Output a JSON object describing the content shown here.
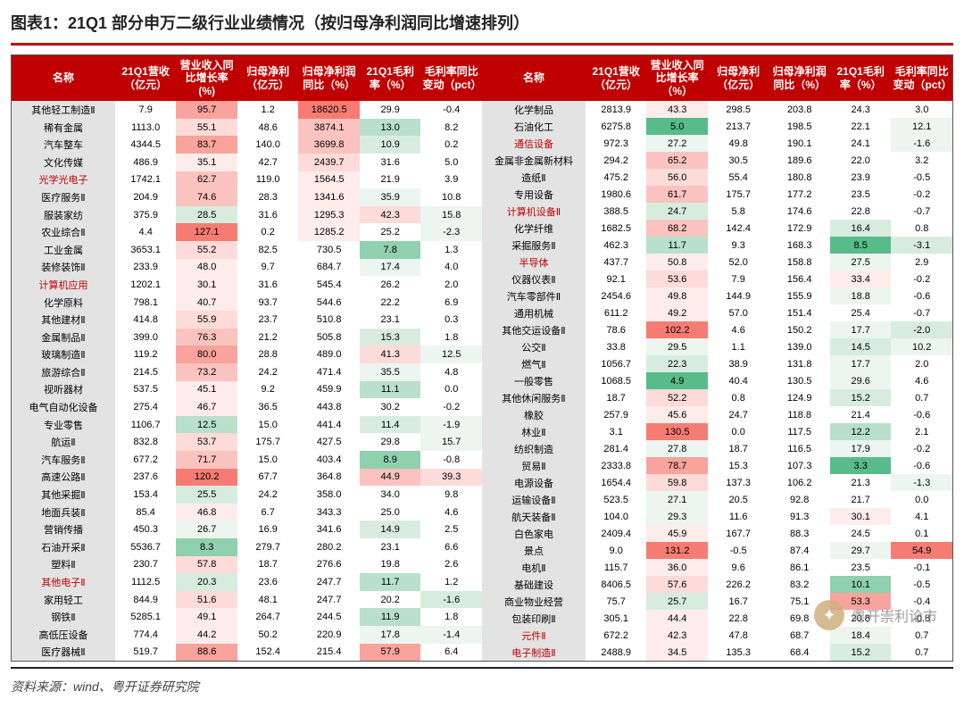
{
  "title": "图表1：21Q1 部分申万二级行业业绩情况（按归母净利润同比增速排列）",
  "footer": "资料来源：wind、粤开证券研究院",
  "watermark": "粤开崇利论市",
  "columns": [
    "名称",
    "21Q1营收（亿元）",
    "营业收入同比增长率(%)",
    "归母净利（亿元）",
    "归母净利润同比（%）",
    "21Q1毛利率（%）",
    "毛利率同比变动（pct）"
  ],
  "columns2": [
    "名称",
    "21Q1营收（亿元）",
    "营业收入同比增长率（%）",
    "归母净利（亿元）",
    "归母净利润同比（%）",
    "21Q1毛利率（%）",
    "毛利率同比变动（pct）"
  ],
  "heat_colors": {
    "r5": "#f57c73",
    "r4": "#f8a39c",
    "r3": "#fbc3bf",
    "r2": "#fddbd9",
    "r1": "#feeceb",
    "g5": "#57bb8a",
    "g4": "#8fd0ae",
    "g3": "#b8e0cb",
    "g2": "#d7ecdf",
    "g1": "#ecf5ef",
    "n": "#ffffff"
  },
  "left": [
    {
      "name": "其他轻工制造Ⅱ",
      "red": 0,
      "v": [
        "7.9",
        "95.7",
        "1.2",
        "18620.5",
        "29.9",
        "-0.4"
      ],
      "h": [
        "n",
        "r4",
        "n",
        "r5",
        "n",
        "n"
      ]
    },
    {
      "name": "稀有金属",
      "red": 0,
      "v": [
        "1113.0",
        "55.1",
        "48.6",
        "3874.1",
        "13.0",
        "8.2"
      ],
      "h": [
        "n",
        "r2",
        "n",
        "r3",
        "g3",
        "n"
      ]
    },
    {
      "name": "汽车整车",
      "red": 0,
      "v": [
        "4344.5",
        "83.7",
        "140.0",
        "3699.8",
        "10.9",
        "0.2"
      ],
      "h": [
        "n",
        "r4",
        "n",
        "r3",
        "g2",
        "n"
      ]
    },
    {
      "name": "文化传媒",
      "red": 0,
      "v": [
        "486.9",
        "35.1",
        "42.7",
        "2439.7",
        "31.6",
        "5.0"
      ],
      "h": [
        "n",
        "r1",
        "n",
        "r2",
        "n",
        "n"
      ]
    },
    {
      "name": "光学光电子",
      "red": 1,
      "v": [
        "1742.1",
        "62.7",
        "119.0",
        "1564.5",
        "21.9",
        "3.9"
      ],
      "h": [
        "n",
        "r3",
        "n",
        "r1",
        "n",
        "n"
      ]
    },
    {
      "name": "医疗服务Ⅱ",
      "red": 0,
      "v": [
        "204.9",
        "74.6",
        "28.3",
        "1341.6",
        "35.9",
        "10.8"
      ],
      "h": [
        "n",
        "r3",
        "n",
        "r1",
        "g1",
        "n"
      ]
    },
    {
      "name": "服装家纺",
      "red": 0,
      "v": [
        "375.9",
        "28.5",
        "31.6",
        "1295.3",
        "42.3",
        "15.8"
      ],
      "h": [
        "n",
        "g2",
        "n",
        "r1",
        "r2",
        "g1"
      ]
    },
    {
      "name": "农业综合Ⅱ",
      "red": 0,
      "v": [
        "4.4",
        "127.1",
        "0.2",
        "1285.2",
        "25.2",
        "-2.3"
      ],
      "h": [
        "n",
        "r5",
        "n",
        "r1",
        "n",
        "g1"
      ]
    },
    {
      "name": "工业金属",
      "red": 0,
      "v": [
        "3653.1",
        "55.2",
        "82.5",
        "730.5",
        "7.8",
        "1.3"
      ],
      "h": [
        "n",
        "r2",
        "n",
        "n",
        "g4",
        "n"
      ]
    },
    {
      "name": "装修装饰Ⅱ",
      "red": 0,
      "v": [
        "233.9",
        "48.0",
        "9.7",
        "684.7",
        "17.4",
        "4.0"
      ],
      "h": [
        "n",
        "r1",
        "n",
        "n",
        "g1",
        "n"
      ]
    },
    {
      "name": "计算机应用",
      "red": 1,
      "v": [
        "1202.1",
        "30.1",
        "31.6",
        "545.4",
        "26.2",
        "2.0"
      ],
      "h": [
        "n",
        "r1",
        "n",
        "n",
        "n",
        "n"
      ]
    },
    {
      "name": "化学原料",
      "red": 0,
      "v": [
        "798.1",
        "40.7",
        "93.7",
        "544.6",
        "22.2",
        "6.9"
      ],
      "h": [
        "n",
        "r1",
        "n",
        "n",
        "n",
        "n"
      ]
    },
    {
      "name": "其他建材Ⅱ",
      "red": 0,
      "v": [
        "414.8",
        "55.9",
        "23.7",
        "510.8",
        "23.1",
        "0.3"
      ],
      "h": [
        "n",
        "r2",
        "n",
        "n",
        "n",
        "n"
      ]
    },
    {
      "name": "金属制品Ⅱ",
      "red": 0,
      "v": [
        "399.0",
        "76.3",
        "21.2",
        "505.8",
        "15.3",
        "1.8"
      ],
      "h": [
        "n",
        "r3",
        "n",
        "n",
        "g2",
        "n"
      ]
    },
    {
      "name": "玻璃制造Ⅱ",
      "red": 0,
      "v": [
        "119.2",
        "80.0",
        "28.8",
        "489.0",
        "41.3",
        "12.5"
      ],
      "h": [
        "n",
        "r4",
        "n",
        "n",
        "r2",
        "g1"
      ]
    },
    {
      "name": "旅游综合Ⅱ",
      "red": 0,
      "v": [
        "214.5",
        "73.2",
        "24.2",
        "471.4",
        "35.5",
        "4.8"
      ],
      "h": [
        "n",
        "r3",
        "n",
        "n",
        "g1",
        "n"
      ]
    },
    {
      "name": "视听器材",
      "red": 0,
      "v": [
        "537.5",
        "45.1",
        "9.2",
        "459.9",
        "11.1",
        "0.0"
      ],
      "h": [
        "n",
        "r1",
        "n",
        "n",
        "g3",
        "n"
      ]
    },
    {
      "name": "电气自动化设备",
      "red": 0,
      "v": [
        "275.4",
        "46.7",
        "36.5",
        "443.8",
        "30.2",
        "-0.2"
      ],
      "h": [
        "n",
        "r1",
        "n",
        "n",
        "n",
        "n"
      ]
    },
    {
      "name": "专业零售",
      "red": 0,
      "v": [
        "1106.7",
        "12.5",
        "15.0",
        "441.4",
        "11.4",
        "-1.9"
      ],
      "h": [
        "n",
        "g3",
        "n",
        "n",
        "g2",
        "g1"
      ]
    },
    {
      "name": "航运Ⅱ",
      "red": 0,
      "v": [
        "832.8",
        "53.7",
        "175.7",
        "427.5",
        "29.8",
        "15.7"
      ],
      "h": [
        "n",
        "r2",
        "n",
        "n",
        "n",
        "g1"
      ]
    },
    {
      "name": "汽车服务Ⅱ",
      "red": 0,
      "v": [
        "677.2",
        "71.7",
        "15.0",
        "403.4",
        "8.9",
        "-0.8"
      ],
      "h": [
        "n",
        "r3",
        "n",
        "n",
        "g4",
        "n"
      ]
    },
    {
      "name": "高速公路Ⅱ",
      "red": 0,
      "v": [
        "237.6",
        "120.2",
        "67.7",
        "364.8",
        "44.9",
        "39.3"
      ],
      "h": [
        "n",
        "r5",
        "n",
        "n",
        "r3",
        "r2"
      ]
    },
    {
      "name": "其他采掘Ⅱ",
      "red": 0,
      "v": [
        "153.4",
        "25.5",
        "24.2",
        "358.0",
        "34.0",
        "9.8"
      ],
      "h": [
        "n",
        "g2",
        "n",
        "n",
        "n",
        "n"
      ]
    },
    {
      "name": "地面兵装Ⅱ",
      "red": 0,
      "v": [
        "85.4",
        "46.8",
        "6.7",
        "343.3",
        "25.0",
        "4.6"
      ],
      "h": [
        "n",
        "r1",
        "n",
        "n",
        "n",
        "n"
      ]
    },
    {
      "name": "营销传播",
      "red": 0,
      "v": [
        "450.3",
        "26.7",
        "16.9",
        "341.6",
        "14.9",
        "2.5"
      ],
      "h": [
        "n",
        "g1",
        "n",
        "n",
        "g2",
        "n"
      ]
    },
    {
      "name": "石油开采Ⅱ",
      "red": 0,
      "v": [
        "5536.7",
        "8.3",
        "279.7",
        "280.2",
        "23.1",
        "6.6"
      ],
      "h": [
        "n",
        "g4",
        "n",
        "n",
        "n",
        "n"
      ]
    },
    {
      "name": "塑料Ⅱ",
      "red": 0,
      "v": [
        "230.7",
        "57.8",
        "18.7",
        "276.6",
        "19.8",
        "2.6"
      ],
      "h": [
        "n",
        "r2",
        "n",
        "n",
        "n",
        "n"
      ]
    },
    {
      "name": "其他电子Ⅱ",
      "red": 1,
      "v": [
        "1112.5",
        "20.3",
        "23.6",
        "247.7",
        "11.7",
        "1.2"
      ],
      "h": [
        "n",
        "g2",
        "n",
        "n",
        "g3",
        "n"
      ]
    },
    {
      "name": "家用轻工",
      "red": 0,
      "v": [
        "844.9",
        "51.6",
        "48.1",
        "247.7",
        "20.2",
        "-1.6"
      ],
      "h": [
        "n",
        "r2",
        "n",
        "n",
        "n",
        "g2"
      ]
    },
    {
      "name": "钢铁Ⅱ",
      "red": 0,
      "v": [
        "5285.1",
        "49.1",
        "264.7",
        "244.5",
        "11.9",
        "1.8"
      ],
      "h": [
        "n",
        "r1",
        "n",
        "n",
        "g3",
        "n"
      ]
    },
    {
      "name": "高低压设备",
      "red": 0,
      "v": [
        "774.4",
        "44.2",
        "50.2",
        "220.9",
        "17.8",
        "-1.4"
      ],
      "h": [
        "n",
        "r1",
        "n",
        "n",
        "g1",
        "g1"
      ]
    },
    {
      "name": "医疗器械Ⅱ",
      "red": 0,
      "v": [
        "519.7",
        "88.6",
        "152.4",
        "215.4",
        "57.9",
        "6.4"
      ],
      "h": [
        "n",
        "r4",
        "n",
        "n",
        "r4",
        "n"
      ]
    }
  ],
  "right": [
    {
      "name": "化学制品",
      "red": 0,
      "v": [
        "2813.9",
        "43.3",
        "298.5",
        "203.8",
        "24.3",
        "3.0"
      ],
      "h": [
        "n",
        "r1",
        "n",
        "n",
        "n",
        "n"
      ]
    },
    {
      "name": "石油化工",
      "red": 0,
      "v": [
        "6275.8",
        "5.0",
        "213.7",
        "198.5",
        "22.1",
        "12.1"
      ],
      "h": [
        "n",
        "g5",
        "n",
        "n",
        "n",
        "g1"
      ]
    },
    {
      "name": "通信设备",
      "red": 1,
      "v": [
        "972.3",
        "27.2",
        "49.8",
        "190.1",
        "24.1",
        "-1.6"
      ],
      "h": [
        "n",
        "g1",
        "n",
        "n",
        "n",
        "g1"
      ]
    },
    {
      "name": "金属非金属新材料",
      "red": 0,
      "v": [
        "294.2",
        "65.2",
        "30.5",
        "189.6",
        "22.0",
        "3.2"
      ],
      "h": [
        "n",
        "r3",
        "n",
        "n",
        "n",
        "n"
      ]
    },
    {
      "name": "造纸Ⅱ",
      "red": 0,
      "v": [
        "475.2",
        "56.0",
        "55.4",
        "180.8",
        "23.9",
        "-0.5"
      ],
      "h": [
        "n",
        "r2",
        "n",
        "n",
        "n",
        "n"
      ]
    },
    {
      "name": "专用设备",
      "red": 0,
      "v": [
        "1980.6",
        "61.7",
        "175.7",
        "177.2",
        "23.5",
        "-0.2"
      ],
      "h": [
        "n",
        "r3",
        "n",
        "n",
        "n",
        "n"
      ]
    },
    {
      "name": "计算机设备Ⅱ",
      "red": 1,
      "v": [
        "388.5",
        "24.7",
        "5.8",
        "174.6",
        "22.8",
        "-0.7"
      ],
      "h": [
        "n",
        "g2",
        "n",
        "n",
        "n",
        "n"
      ]
    },
    {
      "name": "化学纤维",
      "red": 0,
      "v": [
        "1682.5",
        "68.2",
        "142.4",
        "172.9",
        "16.4",
        "0.8"
      ],
      "h": [
        "n",
        "r3",
        "n",
        "n",
        "g2",
        "n"
      ]
    },
    {
      "name": "采掘服务Ⅱ",
      "red": 0,
      "v": [
        "462.3",
        "11.7",
        "9.3",
        "168.3",
        "8.5",
        "-3.1"
      ],
      "h": [
        "n",
        "g3",
        "n",
        "n",
        "g5",
        "g2"
      ]
    },
    {
      "name": "半导体",
      "red": 1,
      "v": [
        "437.7",
        "50.8",
        "52.0",
        "158.8",
        "27.5",
        "2.9"
      ],
      "h": [
        "n",
        "r1",
        "n",
        "n",
        "g1",
        "n"
      ]
    },
    {
      "name": "仪器仪表Ⅱ",
      "red": 0,
      "v": [
        "92.1",
        "53.6",
        "7.9",
        "156.4",
        "33.4",
        "-0.2"
      ],
      "h": [
        "n",
        "r2",
        "n",
        "n",
        "r1",
        "n"
      ]
    },
    {
      "name": "汽车零部件Ⅱ",
      "red": 0,
      "v": [
        "2454.6",
        "49.8",
        "144.9",
        "155.9",
        "18.8",
        "-0.6"
      ],
      "h": [
        "n",
        "r1",
        "n",
        "n",
        "g1",
        "n"
      ]
    },
    {
      "name": "通用机械",
      "red": 0,
      "v": [
        "611.2",
        "49.2",
        "57.0",
        "151.4",
        "25.4",
        "-0.7"
      ],
      "h": [
        "n",
        "r1",
        "n",
        "n",
        "n",
        "n"
      ]
    },
    {
      "name": "其他交运设备Ⅱ",
      "red": 0,
      "v": [
        "78.6",
        "102.2",
        "4.6",
        "150.2",
        "17.7",
        "-2.0"
      ],
      "h": [
        "n",
        "r5",
        "n",
        "n",
        "g1",
        "g2"
      ]
    },
    {
      "name": "公交Ⅱ",
      "red": 0,
      "v": [
        "33.8",
        "29.5",
        "1.1",
        "139.0",
        "14.5",
        "10.2"
      ],
      "h": [
        "n",
        "g1",
        "n",
        "n",
        "g2",
        "g1"
      ]
    },
    {
      "name": "燃气Ⅱ",
      "red": 0,
      "v": [
        "1056.7",
        "22.3",
        "38.9",
        "131.8",
        "17.7",
        "2.0"
      ],
      "h": [
        "n",
        "g2",
        "n",
        "n",
        "g1",
        "n"
      ]
    },
    {
      "name": "一般零售",
      "red": 0,
      "v": [
        "1068.5",
        "4.9",
        "40.4",
        "130.5",
        "29.6",
        "4.6"
      ],
      "h": [
        "n",
        "g5",
        "n",
        "n",
        "g1",
        "n"
      ]
    },
    {
      "name": "其他休闲服务Ⅱ",
      "red": 0,
      "v": [
        "18.7",
        "52.2",
        "0.8",
        "124.9",
        "15.2",
        "0.7"
      ],
      "h": [
        "n",
        "r2",
        "n",
        "n",
        "g2",
        "n"
      ]
    },
    {
      "name": "橡胶",
      "red": 0,
      "v": [
        "257.9",
        "45.6",
        "24.7",
        "118.8",
        "21.4",
        "-0.6"
      ],
      "h": [
        "n",
        "r1",
        "n",
        "n",
        "n",
        "n"
      ]
    },
    {
      "name": "林业Ⅱ",
      "red": 0,
      "v": [
        "3.1",
        "130.5",
        "0.0",
        "117.5",
        "12.2",
        "2.1"
      ],
      "h": [
        "n",
        "r5",
        "n",
        "n",
        "g3",
        "n"
      ]
    },
    {
      "name": "纺织制造",
      "red": 0,
      "v": [
        "281.4",
        "27.8",
        "18.7",
        "116.5",
        "17.9",
        "-0.2"
      ],
      "h": [
        "n",
        "g1",
        "n",
        "n",
        "g1",
        "n"
      ]
    },
    {
      "name": "贸易Ⅱ",
      "red": 0,
      "v": [
        "2333.8",
        "78.7",
        "15.3",
        "107.3",
        "3.3",
        "-0.6"
      ],
      "h": [
        "n",
        "r4",
        "n",
        "n",
        "g5",
        "n"
      ]
    },
    {
      "name": "电源设备",
      "red": 0,
      "v": [
        "1654.4",
        "59.8",
        "137.3",
        "106.2",
        "21.3",
        "-1.3"
      ],
      "h": [
        "n",
        "r2",
        "n",
        "n",
        "n",
        "g1"
      ]
    },
    {
      "name": "运输设备Ⅱ",
      "red": 0,
      "v": [
        "523.5",
        "27.1",
        "20.5",
        "92.8",
        "21.7",
        "0.0"
      ],
      "h": [
        "n",
        "g1",
        "n",
        "n",
        "n",
        "n"
      ]
    },
    {
      "name": "航天装备Ⅱ",
      "red": 0,
      "v": [
        "104.0",
        "29.3",
        "11.6",
        "91.3",
        "30.1",
        "4.1"
      ],
      "h": [
        "n",
        "g1",
        "n",
        "n",
        "r1",
        "n"
      ]
    },
    {
      "name": "白色家电",
      "red": 0,
      "v": [
        "2409.4",
        "45.9",
        "167.7",
        "88.3",
        "24.5",
        "0.1"
      ],
      "h": [
        "n",
        "r1",
        "n",
        "n",
        "n",
        "n"
      ]
    },
    {
      "name": "景点",
      "red": 0,
      "v": [
        "9.0",
        "131.2",
        "-0.5",
        "87.4",
        "29.7",
        "54.9"
      ],
      "h": [
        "n",
        "r5",
        "n",
        "n",
        "g1",
        "r5"
      ]
    },
    {
      "name": "电机Ⅱ",
      "red": 0,
      "v": [
        "115.7",
        "36.0",
        "9.6",
        "86.1",
        "23.5",
        "-0.1"
      ],
      "h": [
        "n",
        "r1",
        "n",
        "n",
        "n",
        "n"
      ]
    },
    {
      "name": "基础建设",
      "red": 0,
      "v": [
        "8406.5",
        "57.6",
        "226.2",
        "83.2",
        "10.1",
        "-0.5"
      ],
      "h": [
        "n",
        "r2",
        "n",
        "n",
        "g4",
        "n"
      ]
    },
    {
      "name": "商业物业经营",
      "red": 0,
      "v": [
        "75.7",
        "25.7",
        "16.7",
        "75.1",
        "53.3",
        "-0.4"
      ],
      "h": [
        "n",
        "g2",
        "n",
        "n",
        "r4",
        "n"
      ]
    },
    {
      "name": "包装印刷Ⅱ",
      "red": 0,
      "v": [
        "305.1",
        "44.4",
        "22.8",
        "69.8",
        "20.8",
        "-0.8"
      ],
      "h": [
        "n",
        "r1",
        "n",
        "n",
        "n",
        "n"
      ]
    },
    {
      "name": "元件Ⅱ",
      "red": 1,
      "v": [
        "672.2",
        "42.3",
        "47.8",
        "68.7",
        "18.4",
        "0.7"
      ],
      "h": [
        "n",
        "r1",
        "n",
        "n",
        "g1",
        "n"
      ]
    },
    {
      "name": "电子制造Ⅱ",
      "red": 1,
      "v": [
        "2488.9",
        "34.5",
        "135.3",
        "68.4",
        "15.2",
        "0.7"
      ],
      "h": [
        "n",
        "r1",
        "n",
        "n",
        "g2",
        "n"
      ]
    }
  ]
}
